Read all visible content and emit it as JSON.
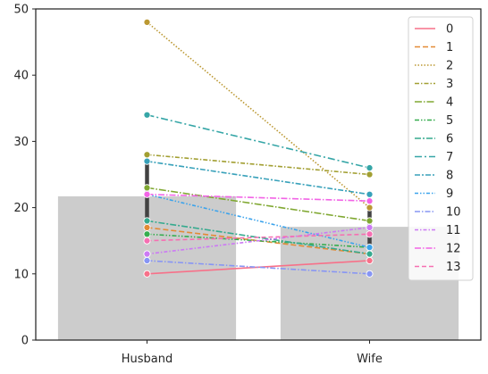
{
  "chart_data": {
    "type": "bar",
    "categories": [
      "Husband",
      "Wife"
    ],
    "bar_values": [
      21.7,
      17.1
    ],
    "bar_error": [
      [
        15.6,
        27.3
      ],
      [
        13.8,
        20.1
      ]
    ],
    "bar_color": "#cccccc",
    "ylim": [
      0,
      50
    ],
    "yticks": [
      "0",
      "10",
      "20",
      "30",
      "40",
      "50"
    ],
    "title": "",
    "xlabel": "",
    "ylabel": "",
    "legend_position": "top-right",
    "series": [
      {
        "name": "0",
        "values": [
          10,
          12
        ],
        "color": "#f77189",
        "dash": ""
      },
      {
        "name": "1",
        "values": [
          17,
          13
        ],
        "color": "#e38a35",
        "dash": "6,3"
      },
      {
        "name": "2",
        "values": [
          48,
          20
        ],
        "color": "#bb9832",
        "dash": "1.5,2"
      },
      {
        "name": "3",
        "values": [
          28,
          25
        ],
        "color": "#a29f32",
        "dash": "5,2,1.5,2"
      },
      {
        "name": "4",
        "values": [
          23,
          18
        ],
        "color": "#80a832",
        "dash": "8,2,1.5,2"
      },
      {
        "name": "5",
        "values": [
          16,
          14
        ],
        "color": "#36ad4f",
        "dash": "5,2,1.5,2,1.5,2"
      },
      {
        "name": "6",
        "values": [
          18,
          13
        ],
        "color": "#35aa8e",
        "dash": "7,2,2,2"
      },
      {
        "name": "7",
        "values": [
          34,
          26
        ],
        "color": "#36a6a7",
        "dash": "8,3,2,3"
      },
      {
        "name": "8",
        "values": [
          27,
          22
        ],
        "color": "#38a1ba",
        "dash": "6,2,2,2"
      },
      {
        "name": "9",
        "values": [
          22,
          14
        ],
        "color": "#3ba3ec",
        "dash": "4,2,1.5,2,1.5,2"
      },
      {
        "name": "10",
        "values": [
          12,
          10
        ],
        "color": "#8795f4",
        "dash": "6,2,1.5,2"
      },
      {
        "name": "11",
        "values": [
          13,
          17
        ],
        "color": "#cc7af4",
        "dash": "4,2,1.5,2"
      },
      {
        "name": "12",
        "values": [
          22,
          21
        ],
        "color": "#f264e6",
        "dash": "7,2,1.5,2"
      },
      {
        "name": "13",
        "values": [
          15,
          16
        ],
        "color": "#f66fb2",
        "dash": "5,3"
      }
    ]
  }
}
